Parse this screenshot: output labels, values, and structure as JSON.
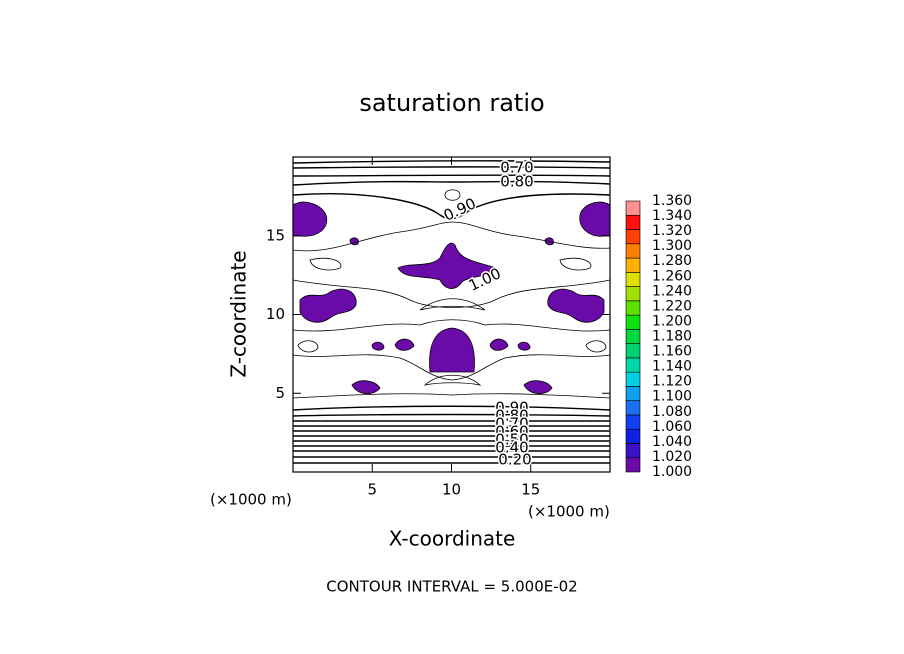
{
  "chart_data": {
    "type": "contour",
    "title": "saturation ratio",
    "x_label": "X-coordinate",
    "y_label": "Z-coordinate",
    "x_unit": "(×1000 m)",
    "y_unit": "(×1000 m)",
    "xlim": [
      0,
      20
    ],
    "xticks": [
      5,
      10,
      15
    ],
    "ylim": [
      0,
      20
    ],
    "yticks": [
      5,
      10,
      15
    ],
    "contour_labels": [
      "0.70",
      "0.80",
      "0.90",
      "1.00",
      "0.90",
      "0.80",
      "0.70",
      "0.60",
      "0.50",
      "0.40",
      "0.20"
    ],
    "levels": [
      {
        "value": 1.0,
        "label": "1.000"
      },
      {
        "value": 1.02,
        "label": "1.020"
      },
      {
        "value": 1.04,
        "label": "1.040"
      },
      {
        "value": 1.06,
        "label": "1.060"
      },
      {
        "value": 1.08,
        "label": "1.080"
      },
      {
        "value": 1.1,
        "label": "1.100"
      },
      {
        "value": 1.12,
        "label": "1.120"
      },
      {
        "value": 1.14,
        "label": "1.140"
      },
      {
        "value": 1.16,
        "label": "1.160"
      },
      {
        "value": 1.18,
        "label": "1.180"
      },
      {
        "value": 1.2,
        "label": "1.200"
      },
      {
        "value": 1.22,
        "label": "1.220"
      },
      {
        "value": 1.24,
        "label": "1.240"
      },
      {
        "value": 1.26,
        "label": "1.260"
      },
      {
        "value": 1.28,
        "label": "1.280"
      },
      {
        "value": 1.3,
        "label": "1.300"
      },
      {
        "value": 1.32,
        "label": "1.320"
      },
      {
        "value": 1.34,
        "label": "1.340"
      },
      {
        "value": 1.36,
        "label": "1.360"
      }
    ],
    "colors": [
      "#6a0aa8",
      "#3a10c8",
      "#1020e0",
      "#1040f0",
      "#1a70f0",
      "#10a0f0",
      "#00d0e0",
      "#00d8a8",
      "#00d070",
      "#00d840",
      "#10e010",
      "#60e000",
      "#a0e000",
      "#e0e000",
      "#ffb000",
      "#ff8000",
      "#ff4000",
      "#ff1010",
      "#ff9090"
    ],
    "annotation": "CONTOUR INTERVAL = 5.000E-02"
  }
}
